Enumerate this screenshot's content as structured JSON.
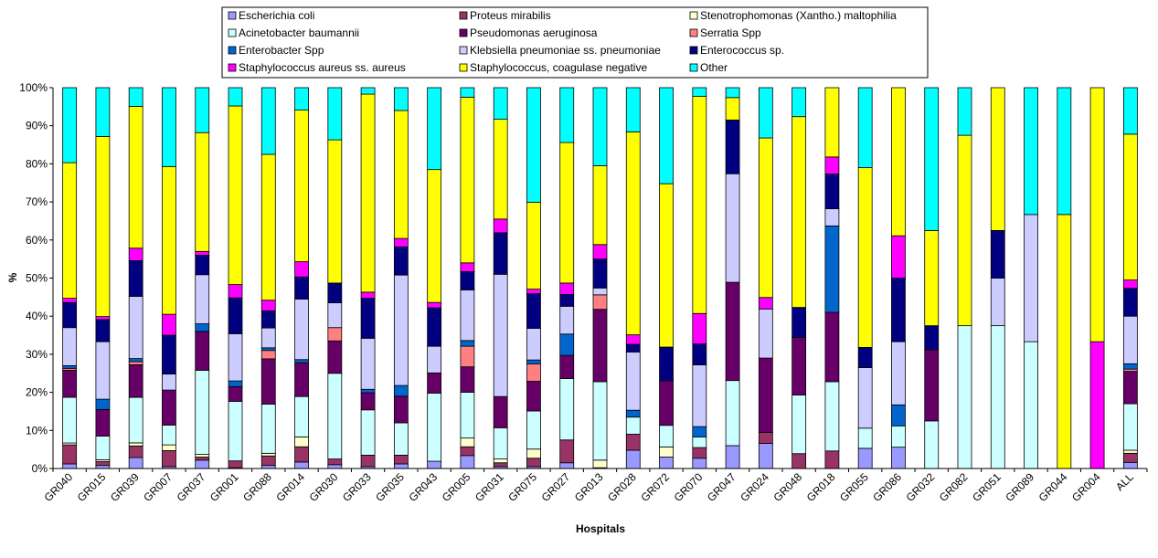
{
  "chart_data": {
    "type": "bar",
    "stacked": true,
    "percent": true,
    "title": "",
    "xlabel": "Hospitals",
    "ylabel": "%",
    "ylim": [
      0,
      100
    ],
    "yticks": [
      "0%",
      "10%",
      "20%",
      "30%",
      "40%",
      "50%",
      "60%",
      "70%",
      "80%",
      "90%",
      "100%"
    ],
    "grid": false,
    "legend_position": "top",
    "categories": [
      "GR040",
      "GR015",
      "GR039",
      "GR007",
      "GR037",
      "GR001",
      "GR088",
      "GR014",
      "GR030",
      "GR033",
      "GR035",
      "GR043",
      "GR005",
      "GR031",
      "GR075",
      "GR027",
      "GR013",
      "GR028",
      "GR072",
      "GR070",
      "GR047",
      "GR024",
      "GR048",
      "GR018",
      "GR055",
      "GR086",
      "GR032",
      "GR082",
      "GR051",
      "GR089",
      "GR044",
      "GR004",
      "ALL"
    ],
    "series": [
      {
        "name": "Escherichia coli",
        "color": "#9999ff",
        "values": [
          1.2,
          0.8,
          2.8,
          0.5,
          2.2,
          0.2,
          0.8,
          1.7,
          1.0,
          0.5,
          1.2,
          1.9,
          3.4,
          0.5,
          0.5,
          1.5,
          0.2,
          4.8,
          2.7,
          2.7,
          6.0,
          6.6,
          0,
          0,
          5.3,
          5.6,
          0,
          0,
          0,
          0,
          0,
          0,
          1.6
        ]
      },
      {
        "name": "Proteus mirabilis",
        "color": "#993366",
        "values": [
          5.0,
          1.0,
          3.0,
          4.2,
          0.8,
          1.8,
          2.5,
          4.0,
          1.5,
          3.0,
          2.3,
          0,
          2.3,
          1.0,
          2.2,
          6.0,
          0,
          4.2,
          0,
          2.8,
          0,
          2.9,
          3.9,
          4.6,
          0,
          0,
          0,
          0,
          0,
          0,
          0,
          0,
          2.4
        ]
      },
      {
        "name": "Stenotrophomonas (Xantho.) maltophilia",
        "color": "#ffffcc",
        "values": [
          0.5,
          0.5,
          0.8,
          1.5,
          0.7,
          0,
          0.7,
          2.6,
          0,
          0,
          0,
          0,
          2.3,
          1.0,
          2.4,
          0,
          2.0,
          0,
          2.4,
          0,
          0,
          0,
          0,
          0,
          0,
          0,
          0,
          0,
          0,
          0,
          0,
          0,
          0.8
        ]
      },
      {
        "name": "Acinetobacter baumannii",
        "color": "#ccffff",
        "values": [
          12.0,
          6.2,
          11.7,
          5.2,
          22.1,
          15.6,
          12.9,
          10.6,
          22.5,
          11.9,
          8.5,
          17.9,
          12.0,
          8.2,
          10.0,
          16.1,
          20.6,
          4.5,
          5.1,
          2.8,
          17.1,
          0,
          15.4,
          18.2,
          5.3,
          5.6,
          12.5,
          37.5,
          37.5,
          33.3,
          0,
          0,
          12.2
        ]
      },
      {
        "name": "Pseudomonas aeruginosa",
        "color": "#660066",
        "values": [
          7.1,
          7.0,
          8.4,
          9.2,
          10.2,
          3.9,
          11.9,
          8.9,
          8.5,
          4.5,
          7.0,
          5.3,
          6.7,
          8.2,
          7.8,
          6.1,
          19.0,
          0,
          10.5,
          0,
          25.8,
          19.5,
          15.1,
          18.2,
          0,
          0,
          18.7,
          0,
          0,
          0,
          0,
          0,
          8.5
        ]
      },
      {
        "name": "Serratia Spp",
        "color": "#ff8080",
        "values": [
          0.5,
          0,
          0.8,
          0,
          0,
          0,
          2.2,
          0,
          3.5,
          0,
          0,
          0,
          5.4,
          0,
          4.6,
          0,
          3.8,
          0,
          0,
          0,
          0,
          0,
          0,
          0,
          0,
          0,
          0,
          0,
          0,
          0,
          0,
          0,
          0.6
        ]
      },
      {
        "name": "Enterobacter Spp",
        "color": "#0066cc",
        "values": [
          0.7,
          2.7,
          0.8,
          0,
          2.0,
          1.5,
          0.7,
          0.8,
          0,
          0.9,
          2.8,
          0,
          1.5,
          0,
          1.0,
          5.6,
          0,
          1.8,
          0,
          2.7,
          0,
          0,
          0,
          22.7,
          0,
          5.5,
          0,
          0,
          0,
          0,
          0,
          0,
          1.4
        ]
      },
      {
        "name": "Klebsiella pneumoniae ss. pneumoniae",
        "color": "#ccccff",
        "values": [
          10.0,
          15.1,
          16.0,
          4.2,
          12.9,
          12.4,
          5.2,
          15.9,
          6.5,
          13.4,
          29.0,
          7.0,
          13.3,
          32.1,
          8.3,
          7.3,
          1.8,
          15.3,
          0,
          16.2,
          28.5,
          12.9,
          0,
          4.5,
          15.9,
          16.6,
          0,
          0,
          12.5,
          33.4,
          0,
          0,
          12.5
        ]
      },
      {
        "name": "Enterococcus sp.",
        "color": "#000080",
        "values": [
          6.6,
          5.8,
          9.2,
          10.2,
          5.1,
          9.4,
          4.5,
          5.8,
          5.2,
          10.5,
          7.4,
          10.1,
          4.8,
          10.9,
          9.1,
          3.1,
          7.6,
          2.0,
          8.0,
          5.5,
          14.1,
          0,
          7.9,
          9.1,
          5.3,
          16.7,
          6.3,
          0,
          12.5,
          0,
          0,
          0,
          7.3
        ]
      },
      {
        "name": "Staphylococcus aureus ss. aureus",
        "color": "#ff00ff",
        "values": [
          1.1,
          0.8,
          3.2,
          5.5,
          1.0,
          3.5,
          2.8,
          4.0,
          0,
          1.6,
          2.2,
          1.4,
          2.3,
          3.6,
          1.2,
          3.0,
          3.8,
          2.5,
          0,
          8.0,
          0,
          3.0,
          0,
          4.5,
          0,
          11.1,
          0,
          0,
          0,
          0,
          0,
          33.3,
          2.2
        ]
      },
      {
        "name": "Staphylococcus, coagulase negative",
        "color": "#ffff00",
        "values": [
          35.6,
          47.3,
          36.5,
          38.8,
          31.2,
          46.9,
          38.3,
          39.8,
          37.6,
          52.0,
          33.6,
          34.9,
          43.5,
          26.2,
          22.8,
          36.9,
          20.7,
          53.3,
          38.6,
          57.0,
          5.9,
          41.9,
          50.1,
          18.2,
          47.2,
          38.9,
          25.0,
          50.0,
          37.5,
          0,
          66.7,
          66.7,
          38.3
        ]
      },
      {
        "name": "Other",
        "color": "#00ffff",
        "values": [
          19.7,
          12.8,
          4.8,
          20.7,
          11.8,
          4.8,
          17.5,
          5.9,
          13.7,
          1.7,
          6.0,
          21.5,
          2.5,
          8.3,
          30.1,
          14.4,
          20.5,
          11.6,
          22.7,
          2.3,
          2.6,
          13.2,
          7.6,
          0,
          21.0,
          0,
          37.5,
          12.5,
          0,
          33.3,
          33.3,
          0,
          12.2
        ]
      }
    ]
  }
}
